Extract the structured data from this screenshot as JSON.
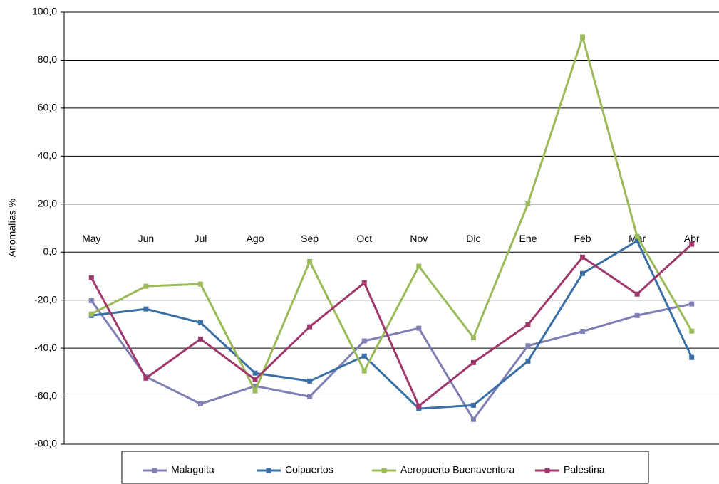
{
  "chart_data": {
    "type": "line",
    "y_label": "Anomalías %",
    "categories": [
      "May",
      "Jun",
      "Jul",
      "Ago",
      "Sep",
      "Oct",
      "Nov",
      "Dic",
      "Ene",
      "Feb",
      "Mar",
      "Abr"
    ],
    "series": [
      {
        "name": "Malaguita",
        "color": "#7f7fb5",
        "values": [
          -20.2,
          -51.9,
          -63.2,
          -55.8,
          -60.2,
          -37.0,
          -31.7,
          -69.7,
          -39.0,
          -33.0,
          -26.4,
          -21.6
        ]
      },
      {
        "name": "Colpuertos",
        "color": "#3a6fa5",
        "values": [
          -26.4,
          -23.7,
          -29.4,
          -50.4,
          -53.7,
          -43.3,
          -65.2,
          -63.8,
          -45.4,
          -8.9,
          4.7,
          -43.9
        ]
      },
      {
        "name": "Aeropuerto Buenaventura",
        "color": "#9bbb59",
        "values": [
          -25.8,
          -14.2,
          -13.3,
          -57.8,
          -3.9,
          -49.5,
          -5.9,
          -35.6,
          20.2,
          89.6,
          6.5,
          -32.9
        ]
      },
      {
        "name": "Palestina",
        "color": "#a0386b",
        "values": [
          -10.7,
          -52.5,
          -36.2,
          -53.1,
          -31.1,
          -12.8,
          -64.1,
          -46.0,
          -30.2,
          -2.1,
          -17.5,
          3.3
        ]
      }
    ],
    "ylim": [
      -80,
      100
    ],
    "yticks": [
      {
        "value": -80,
        "label": "-80,0"
      },
      {
        "value": -60,
        "label": "-60,0"
      },
      {
        "value": -40,
        "label": "-40,0"
      },
      {
        "value": -20,
        "label": "-20,0"
      },
      {
        "value": 0,
        "label": "0,0"
      },
      {
        "value": 20,
        "label": "20,0"
      },
      {
        "value": 40,
        "label": "40,0"
      },
      {
        "value": 60,
        "label": "60,0"
      },
      {
        "value": 80,
        "label": "80,0"
      },
      {
        "value": 100,
        "label": "100,0"
      }
    ],
    "grid": true
  }
}
